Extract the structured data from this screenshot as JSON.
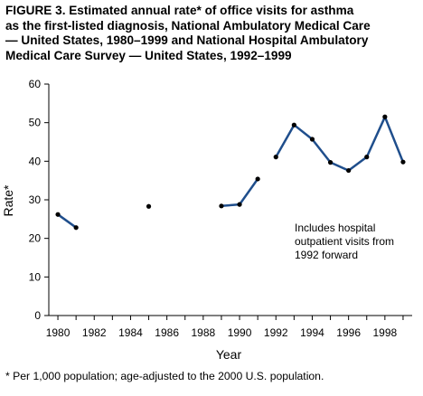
{
  "title_lines": [
    "FIGURE 3. Estimated annual rate* of office visits for asthma",
    "as the first-listed diagnosis, National Ambulatory Medical Care",
    "— United States, 1980–1999 and National Hospital Ambulatory",
    "Medical Care Survey — United States, 1992–1999"
  ],
  "footnote": "* Per 1,000 population; age-adjusted to the 2000 U.S. population.",
  "chart_data": {
    "type": "line",
    "title": "FIGURE 3. Estimated annual rate* of office visits for asthma as the first-listed diagnosis, National Ambulatory Medical Care — United States, 1980–1999 and National Hospital Ambulatory Medical Care Survey — United States, 1992–1999",
    "xlabel": "Year",
    "ylabel": "Rate*",
    "xlim": [
      1979.5,
      1999.5
    ],
    "ylim": [
      0,
      60
    ],
    "x_ticks": [
      1980,
      1982,
      1984,
      1986,
      1988,
      1990,
      1992,
      1994,
      1996,
      1998
    ],
    "y_ticks": [
      0,
      10,
      20,
      30,
      40,
      50,
      60
    ],
    "grid": false,
    "legend": "none",
    "line_color": "#1f4e8c",
    "marker_color": "#000000",
    "annotation": [
      "Includes hospital",
      "outpatient visits from",
      "1992 forward"
    ],
    "segments": [
      {
        "x": [
          1980,
          1981
        ],
        "y": [
          26.2,
          22.8
        ]
      },
      {
        "x": [
          1985
        ],
        "y": [
          28.3
        ]
      },
      {
        "x": [
          1989,
          1990,
          1991
        ],
        "y": [
          28.4,
          28.8,
          35.4
        ]
      },
      {
        "x": [
          1992,
          1993,
          1994,
          1995,
          1996,
          1997,
          1998,
          1999
        ],
        "y": [
          41.1,
          49.4,
          45.7,
          39.7,
          37.6,
          41.1,
          51.5,
          39.8
        ]
      }
    ]
  }
}
